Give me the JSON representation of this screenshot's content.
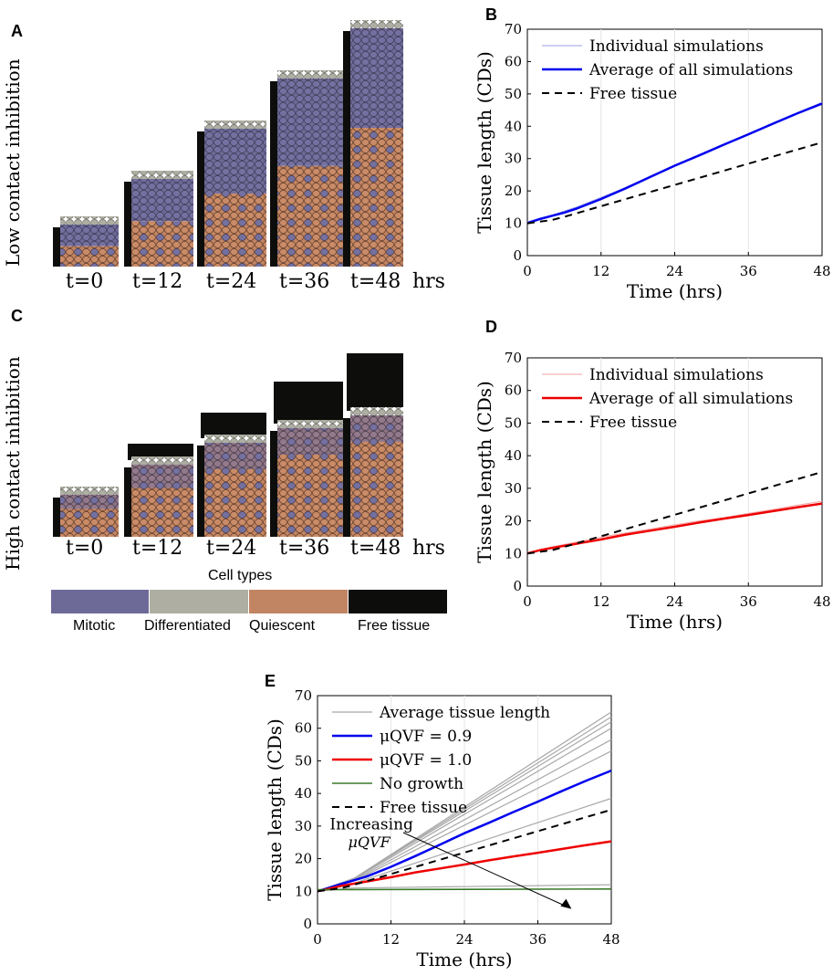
{
  "panels": {
    "A": "A",
    "B": "B",
    "C": "C",
    "D": "D",
    "E": "E"
  },
  "row_labels": {
    "low": "Low contact inhibition",
    "high": "High contact inhibition"
  },
  "time_labels": [
    "t=0",
    "t=12",
    "t=24",
    "t=36",
    "t=48"
  ],
  "time_unit": "hrs",
  "cell_legend": {
    "title": "Cell types",
    "items": [
      {
        "label": "Mitotic",
        "color": "#6e6a98"
      },
      {
        "label": "Differentiated",
        "color": "#aeaea3"
      },
      {
        "label": "Quiescent",
        "color": "#c28563"
      },
      {
        "label": "Free tissue",
        "color": "#0d0d0b"
      }
    ]
  },
  "tissue_stacks": {
    "low": [
      {
        "time": 0,
        "free": 0,
        "cells": 55
      },
      {
        "time": 12,
        "free": 0,
        "cells": 105
      },
      {
        "time": 24,
        "free": 0,
        "cells": 160
      },
      {
        "time": 36,
        "free": 0,
        "cells": 215
      },
      {
        "time": 48,
        "free": 0,
        "cells": 270
      }
    ],
    "high": [
      {
        "time": 0,
        "free": 0,
        "cells": 55
      },
      {
        "time": 12,
        "free": 10,
        "cells": 88
      },
      {
        "time": 24,
        "free": 20,
        "cells": 112
      },
      {
        "time": 36,
        "free": 38,
        "cells": 128
      },
      {
        "time": 48,
        "free": 55,
        "cells": 142
      }
    ]
  },
  "chart_data": [
    {
      "id": "B",
      "type": "line",
      "xlabel": "Time (hrs)",
      "ylabel": "Tissue length (CDs)",
      "xlim": [
        0,
        48
      ],
      "ylim": [
        0,
        70
      ],
      "xticks": [
        0,
        12,
        24,
        36,
        48
      ],
      "yticks": [
        0,
        10,
        20,
        30,
        40,
        50,
        60,
        70
      ],
      "legend": [
        "Individual simulations",
        "Average of all simulations",
        "Free tissue"
      ],
      "series": [
        {
          "name": "Individual simulations",
          "color": "#9aa0e8",
          "width": 1,
          "dash": "",
          "x": [
            0,
            4,
            8,
            12,
            16,
            20,
            24,
            28,
            32,
            36,
            40,
            44,
            48
          ],
          "y": [
            10.5,
            12.5,
            15,
            18,
            21,
            24.5,
            28,
            31.2,
            34.5,
            37.7,
            41,
            44.2,
            47.4
          ]
        },
        {
          "name": "Average of all simulations",
          "color": "#0000ee",
          "width": 2.5,
          "dash": "",
          "x": [
            0,
            2,
            4,
            6,
            8,
            12,
            16,
            20,
            24,
            28,
            32,
            36,
            40,
            44,
            48
          ],
          "y": [
            10,
            11.3,
            12.3,
            13.3,
            14.5,
            17.5,
            20.8,
            24.3,
            27.8,
            31,
            34.3,
            37.5,
            40.8,
            44,
            47
          ]
        },
        {
          "name": "Free tissue",
          "color": "#000000",
          "width": 2,
          "dash": "8,6",
          "x": [
            0,
            4,
            6,
            48
          ],
          "y": [
            10,
            11,
            12,
            35
          ]
        }
      ]
    },
    {
      "id": "D",
      "type": "line",
      "xlabel": "Time (hrs)",
      "ylabel": "Tissue length (CDs)",
      "xlim": [
        0,
        48
      ],
      "ylim": [
        0,
        70
      ],
      "xticks": [
        0,
        12,
        24,
        36,
        48
      ],
      "yticks": [
        0,
        10,
        20,
        30,
        40,
        50,
        60,
        70
      ],
      "legend": [
        "Individual simulations",
        "Average of all simulations",
        "Free tissue"
      ],
      "series": [
        {
          "name": "Individual simulations",
          "color": "#f3a4a4",
          "width": 1,
          "dash": "",
          "x": [
            0,
            4,
            8,
            12,
            16,
            20,
            24,
            28,
            32,
            36,
            40,
            44,
            48
          ],
          "y": [
            10.3,
            12,
            13.5,
            15,
            16.3,
            17.5,
            18.8,
            20,
            21,
            22.3,
            23.5,
            24.8,
            26
          ]
        },
        {
          "name": "Average of all simulations",
          "color": "#ee0000",
          "width": 2.5,
          "dash": "",
          "x": [
            0,
            2,
            4,
            8,
            12,
            16,
            20,
            24,
            28,
            32,
            36,
            40,
            44,
            48
          ],
          "y": [
            10,
            11,
            11.7,
            13,
            14.3,
            15.8,
            17,
            18.2,
            19.5,
            20.7,
            21.8,
            23,
            24.2,
            25.3
          ]
        },
        {
          "name": "Free tissue",
          "color": "#000000",
          "width": 2,
          "dash": "8,6",
          "x": [
            0,
            4,
            6,
            48
          ],
          "y": [
            10,
            11,
            12,
            35
          ]
        }
      ]
    },
    {
      "id": "E",
      "type": "line",
      "xlabel": "Time (hrs)",
      "ylabel": "Tissue length (CDs)",
      "xlim": [
        0,
        48
      ],
      "ylim": [
        0,
        70
      ],
      "xticks": [
        0,
        12,
        24,
        36,
        48
      ],
      "yticks": [
        0,
        10,
        20,
        30,
        40,
        50,
        60,
        70
      ],
      "legend": [
        "Average tissue length",
        "μQVF = 0.9",
        "μQVF = 1.0",
        "No growth",
        "Free tissue"
      ],
      "annotation": {
        "text": "Increasing",
        "subtext": "μQVF"
      },
      "series": [
        {
          "name": "Average tissue length",
          "color": "#a8a8a8",
          "width": 1.2,
          "dash": "",
          "x": [
            0,
            6,
            48
          ],
          "y": [
            10,
            14,
            65
          ]
        },
        {
          "name": "Average tissue length",
          "color": "#a8a8a8",
          "width": 1.2,
          "dash": "",
          "x": [
            0,
            6,
            48
          ],
          "y": [
            10,
            14,
            63.5
          ]
        },
        {
          "name": "Average tissue length",
          "color": "#a8a8a8",
          "width": 1.2,
          "dash": "",
          "x": [
            0,
            6,
            48
          ],
          "y": [
            10,
            14,
            62
          ]
        },
        {
          "name": "Average tissue length",
          "color": "#a8a8a8",
          "width": 1.2,
          "dash": "",
          "x": [
            0,
            6,
            48
          ],
          "y": [
            10,
            13.8,
            60
          ]
        },
        {
          "name": "Average tissue length",
          "color": "#a8a8a8",
          "width": 1.2,
          "dash": "",
          "x": [
            0,
            6,
            48
          ],
          "y": [
            10,
            13.5,
            56.5
          ]
        },
        {
          "name": "Average tissue length",
          "color": "#a8a8a8",
          "width": 1.2,
          "dash": "",
          "x": [
            0,
            6,
            48
          ],
          "y": [
            10,
            13.2,
            53
          ]
        },
        {
          "name": "Average tissue length",
          "color": "#a8a8a8",
          "width": 1.2,
          "dash": "",
          "x": [
            0,
            6,
            48
          ],
          "y": [
            10,
            12.5,
            38.5
          ]
        },
        {
          "name": "Average tissue length",
          "color": "#a8a8a8",
          "width": 1.2,
          "dash": "",
          "x": [
            0,
            6,
            48
          ],
          "y": [
            10,
            11,
            12
          ]
        },
        {
          "name": "μQVF = 0.9",
          "color": "#0000ee",
          "width": 2.5,
          "dash": "",
          "x": [
            0,
            4,
            8,
            12,
            16,
            20,
            24,
            28,
            32,
            36,
            40,
            44,
            48
          ],
          "y": [
            10,
            12.3,
            14.5,
            17.5,
            20.8,
            24.3,
            27.8,
            31,
            34.3,
            37.5,
            40.8,
            44,
            47
          ]
        },
        {
          "name": "μQVF = 1.0",
          "color": "#ee0000",
          "width": 2.5,
          "dash": "",
          "x": [
            0,
            4,
            8,
            12,
            16,
            20,
            24,
            28,
            32,
            36,
            40,
            44,
            48
          ],
          "y": [
            10,
            11.7,
            13,
            14.3,
            15.8,
            17,
            18.2,
            19.5,
            20.7,
            21.8,
            23,
            24.2,
            25.3
          ]
        },
        {
          "name": "No growth",
          "color": "#3a7a2a",
          "width": 1.6,
          "dash": "",
          "x": [
            0,
            48
          ],
          "y": [
            10.5,
            10.7
          ]
        },
        {
          "name": "Free tissue",
          "color": "#000000",
          "width": 2,
          "dash": "8,6",
          "x": [
            0,
            4,
            6,
            48
          ],
          "y": [
            10,
            11,
            12,
            35
          ]
        }
      ]
    }
  ]
}
